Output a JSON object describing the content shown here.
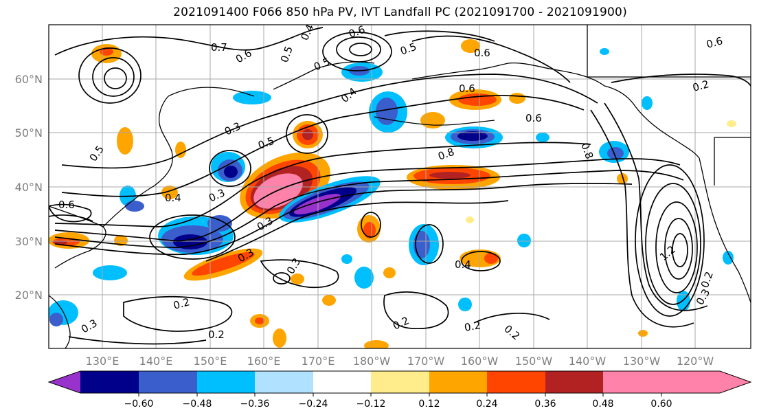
{
  "title": "2021091400 F066 850 hPa PV, IVT Landfall PC (2021091700 - 2021091900)",
  "lat_labels": [
    "60°N",
    "50°N",
    "40°N",
    "30°N",
    "20°N"
  ],
  "lon_labels": [
    "130°E",
    "140°E",
    "150°E",
    "160°E",
    "170°E",
    "180°W",
    "170°W",
    "160°W",
    "150°W",
    "140°W",
    "130°W",
    "120°W"
  ],
  "contour_labels": [
    "0.7",
    "0.6",
    "0.5",
    "0.4",
    "0.6",
    "0.5",
    "0.6",
    "0.6",
    "0.2",
    "0.6",
    "0.3",
    "0.5",
    "0.4",
    "0.5",
    "0.8",
    "0.3",
    "0.6",
    "0.4",
    "0.3",
    "0.3",
    "0.2",
    "0.2",
    "0.2",
    "0.2",
    "0.3",
    "0.4",
    "0.8",
    "0.6",
    "1.2",
    "0.3",
    "0.2",
    "0.2",
    "0.5",
    "0.3"
  ],
  "colorbar": {
    "ticks": [
      "−0.60",
      "−0.48",
      "−0.36",
      "−0.24",
      "−0.12",
      "0.12",
      "0.24",
      "0.36",
      "0.48",
      "0.60"
    ],
    "colors": [
      "#9932cc",
      "#00008b",
      "#3a5fcd",
      "#00bfff",
      "#b0e2ff",
      "#ffffff",
      "#ffec8b",
      "#ffa500",
      "#ff4500",
      "#b22222",
      "#ff82ab"
    ]
  }
}
